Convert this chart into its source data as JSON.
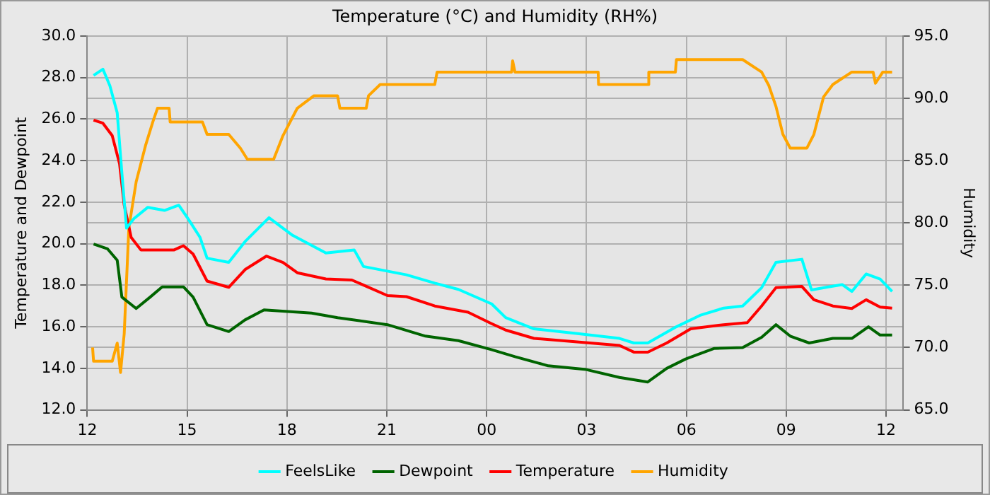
{
  "chart_data": {
    "type": "line",
    "title": "Temperature (°C) and Humidity (RH%)",
    "ylabel": "Temperature and Dewpoint",
    "y2label": "Humidity",
    "xlim": [
      12,
      36.5
    ],
    "xticks": [
      {
        "value": 12,
        "label": "12"
      },
      {
        "value": 15,
        "label": "15"
      },
      {
        "value": 18,
        "label": "18"
      },
      {
        "value": 21,
        "label": "21"
      },
      {
        "value": 24,
        "label": "00"
      },
      {
        "value": 27,
        "label": "03"
      },
      {
        "value": 30,
        "label": "06"
      },
      {
        "value": 33,
        "label": "09"
      },
      {
        "value": 36,
        "label": "12"
      }
    ],
    "ylim": [
      12,
      30
    ],
    "yticks": [
      {
        "value": 12,
        "label": "12.0"
      },
      {
        "value": 14,
        "label": "14.0"
      },
      {
        "value": 16,
        "label": "16.0"
      },
      {
        "value": 18,
        "label": "18.0"
      },
      {
        "value": 20,
        "label": "20.0"
      },
      {
        "value": 22,
        "label": "22.0"
      },
      {
        "value": 24,
        "label": "24.0"
      },
      {
        "value": 26,
        "label": "26.0"
      },
      {
        "value": 28,
        "label": "28.0"
      },
      {
        "value": 30,
        "label": "30.0"
      }
    ],
    "y2lim": [
      65,
      95
    ],
    "y2ticks": [
      {
        "value": 65,
        "label": "65.0"
      },
      {
        "value": 70,
        "label": "70.0"
      },
      {
        "value": 75,
        "label": "75.0"
      },
      {
        "value": 80,
        "label": "80.0"
      },
      {
        "value": 85,
        "label": "85.0"
      },
      {
        "value": 90,
        "label": "90.0"
      },
      {
        "value": 95,
        "label": "95.0"
      }
    ],
    "grid": true,
    "legend": "bottom",
    "marker": "none",
    "line_style": "solid",
    "series": [
      {
        "name": "FeelsLike",
        "color": "#00ffff",
        "x": [
          12.19,
          12.47,
          12.68,
          12.9,
          13.04,
          13.18,
          13.4,
          13.82,
          14.32,
          14.75,
          15.03,
          15.39,
          15.6,
          16.25,
          16.74,
          17.46,
          18.17,
          19.17,
          20.02,
          20.3,
          21.59,
          22.44,
          23.15,
          24.15,
          24.57,
          25.42,
          26.78,
          27.99,
          28.42,
          28.84,
          29.7,
          30.41,
          31.12,
          31.69,
          32.26,
          32.69,
          33.47,
          33.76,
          34.26,
          34.68,
          34.97,
          35.4,
          35.82,
          36.18
        ],
        "values": [
          28.1,
          28.4,
          27.6,
          26.3,
          23.4,
          20.75,
          21.2,
          21.75,
          21.6,
          21.85,
          21.2,
          20.3,
          19.3,
          19.1,
          20.1,
          21.25,
          20.4,
          19.55,
          19.7,
          18.9,
          18.5,
          18.1,
          17.8,
          17.1,
          16.44,
          15.9,
          15.66,
          15.44,
          15.22,
          15.22,
          16.0,
          16.55,
          16.9,
          17.0,
          17.88,
          19.1,
          19.25,
          17.77,
          17.92,
          18.03,
          17.7,
          18.54,
          18.3,
          17.7
        ]
      },
      {
        "name": "Dewpoint",
        "color": "#006400",
        "x": [
          12.19,
          12.61,
          12.9,
          13.04,
          13.47,
          13.89,
          14.25,
          14.89,
          15.18,
          15.6,
          16.25,
          16.74,
          17.31,
          18.74,
          19.52,
          21.02,
          22.16,
          23.15,
          24.14,
          24.85,
          25.85,
          26.99,
          27.99,
          28.84,
          29.41,
          29.98,
          30.84,
          31.69,
          32.26,
          32.69,
          33.12,
          33.69,
          34.4,
          34.97,
          35.47,
          35.82,
          36.18
        ],
        "values": [
          19.98,
          19.75,
          19.2,
          17.43,
          16.88,
          17.43,
          17.92,
          17.92,
          17.43,
          16.1,
          15.77,
          16.33,
          16.81,
          16.66,
          16.44,
          16.1,
          15.55,
          15.33,
          14.9,
          14.56,
          14.12,
          13.94,
          13.56,
          13.34,
          14.0,
          14.45,
          14.96,
          15.0,
          15.49,
          16.1,
          15.55,
          15.22,
          15.44,
          15.44,
          16.0,
          15.6,
          15.6
        ]
      },
      {
        "name": "Temperature",
        "color": "#ff0000",
        "x": [
          12.19,
          12.47,
          12.75,
          12.97,
          13.11,
          13.32,
          13.61,
          14.61,
          14.89,
          15.18,
          15.6,
          16.25,
          16.74,
          17.38,
          17.88,
          18.31,
          19.17,
          19.95,
          21.02,
          21.59,
          22.44,
          23.44,
          24.15,
          24.57,
          25.42,
          26.78,
          27.99,
          28.42,
          28.84,
          29.41,
          30.13,
          31.12,
          31.83,
          32.26,
          32.69,
          33.47,
          33.83,
          34.4,
          34.97,
          35.4,
          35.82,
          36.18
        ],
        "values": [
          25.95,
          25.8,
          25.2,
          23.85,
          21.86,
          20.3,
          19.7,
          19.7,
          19.9,
          19.5,
          18.2,
          17.9,
          18.75,
          19.4,
          19.1,
          18.6,
          18.3,
          18.25,
          17.5,
          17.45,
          17.0,
          16.7,
          16.15,
          15.84,
          15.44,
          15.26,
          15.1,
          14.78,
          14.78,
          15.22,
          15.9,
          16.1,
          16.2,
          17.0,
          17.88,
          17.94,
          17.3,
          17.0,
          16.88,
          17.3,
          16.95,
          16.9
        ]
      },
      {
        "name": "Humidity",
        "color": "#ffa500",
        "axis": "y2",
        "x": [
          12.16,
          12.19,
          12.75,
          12.9,
          13.0,
          13.11,
          13.25,
          13.47,
          13.75,
          13.97,
          14.11,
          14.46,
          14.49,
          15.46,
          15.6,
          16.25,
          16.6,
          16.81,
          17.6,
          17.88,
          18.31,
          18.81,
          19.52,
          19.59,
          20.38,
          20.45,
          20.8,
          22.44,
          22.51,
          24.75,
          24.78,
          24.85,
          27.35,
          27.36,
          28.84,
          28.87,
          29.67,
          29.7,
          31.69,
          32.26,
          32.48,
          32.69,
          32.9,
          33.12,
          33.62,
          33.83,
          34.12,
          34.4,
          34.97,
          35.61,
          35.68,
          35.9,
          36.18
        ],
        "values": [
          70.0,
          68.9,
          68.9,
          70.35,
          68.0,
          71.1,
          79.6,
          83.3,
          86.2,
          88.1,
          89.2,
          89.2,
          88.1,
          88.1,
          87.1,
          87.1,
          86.0,
          85.1,
          85.1,
          87.0,
          89.2,
          90.2,
          90.2,
          89.2,
          89.2,
          90.2,
          91.1,
          91.1,
          92.1,
          92.1,
          93.0,
          92.1,
          92.1,
          91.1,
          91.1,
          92.1,
          92.1,
          93.1,
          93.1,
          92.1,
          91.0,
          89.35,
          87.1,
          86.0,
          86.0,
          87.1,
          90.1,
          91.1,
          92.1,
          92.1,
          91.2,
          92.1,
          92.1
        ]
      }
    ]
  }
}
